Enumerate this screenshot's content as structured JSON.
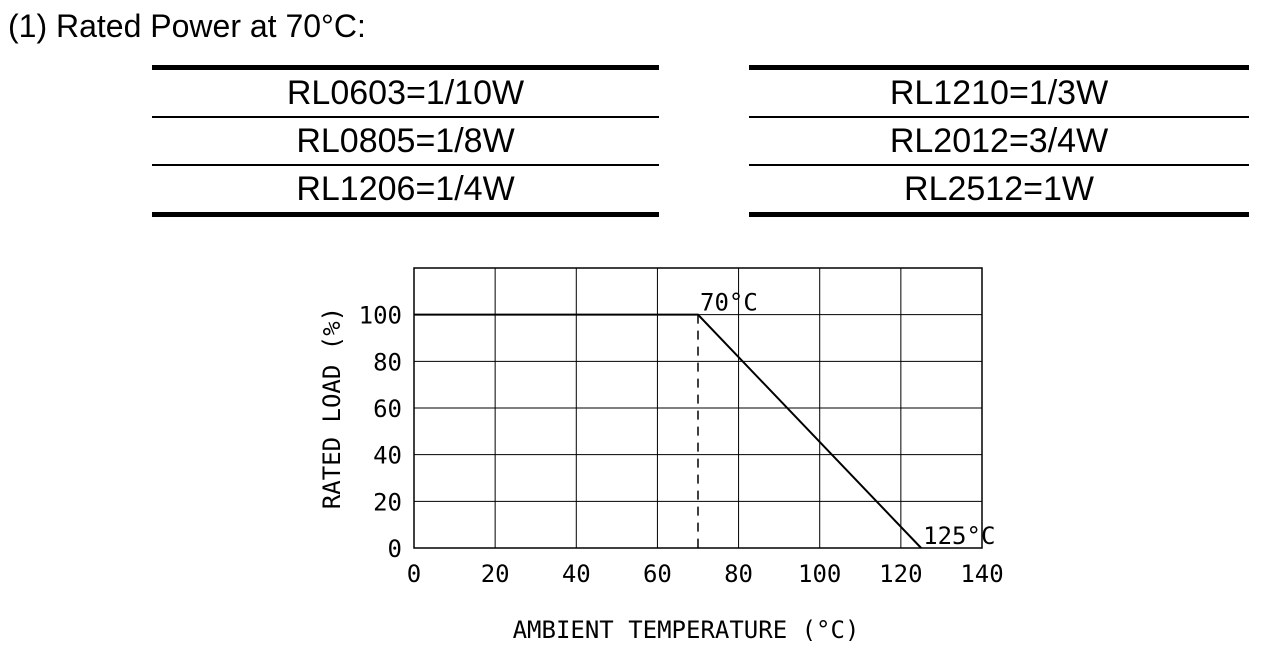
{
  "heading": "(1) Rated Power at 70°C:",
  "power_table": {
    "left": [
      "RL0603=1/10W",
      "RL0805=1/8W",
      "RL1206=1/4W"
    ],
    "right": [
      "RL1210=1/3W",
      "RL2012=3/4W",
      "RL2512=1W"
    ]
  },
  "chart_data": {
    "type": "line",
    "xlabel": "AMBIENT TEMPERATURE (°C)",
    "ylabel": "RATED LOAD (%)",
    "xlim": [
      0,
      140
    ],
    "ylim": [
      0,
      120
    ],
    "x_ticks": [
      0,
      20,
      40,
      60,
      80,
      100,
      120,
      140
    ],
    "y_ticks": [
      0,
      20,
      40,
      60,
      80,
      100
    ],
    "grid": true,
    "series": [
      {
        "x": [
          0,
          70,
          125
        ],
        "y": [
          100,
          100,
          0
        ]
      }
    ],
    "reference_lines": [
      {
        "x": 70,
        "y_from": 0,
        "y_to": 100,
        "style": "dashed"
      }
    ],
    "annotations": [
      {
        "text": "70°C",
        "x": 70,
        "y": 100
      },
      {
        "text": "125°C",
        "x": 125,
        "y": 0
      }
    ]
  }
}
